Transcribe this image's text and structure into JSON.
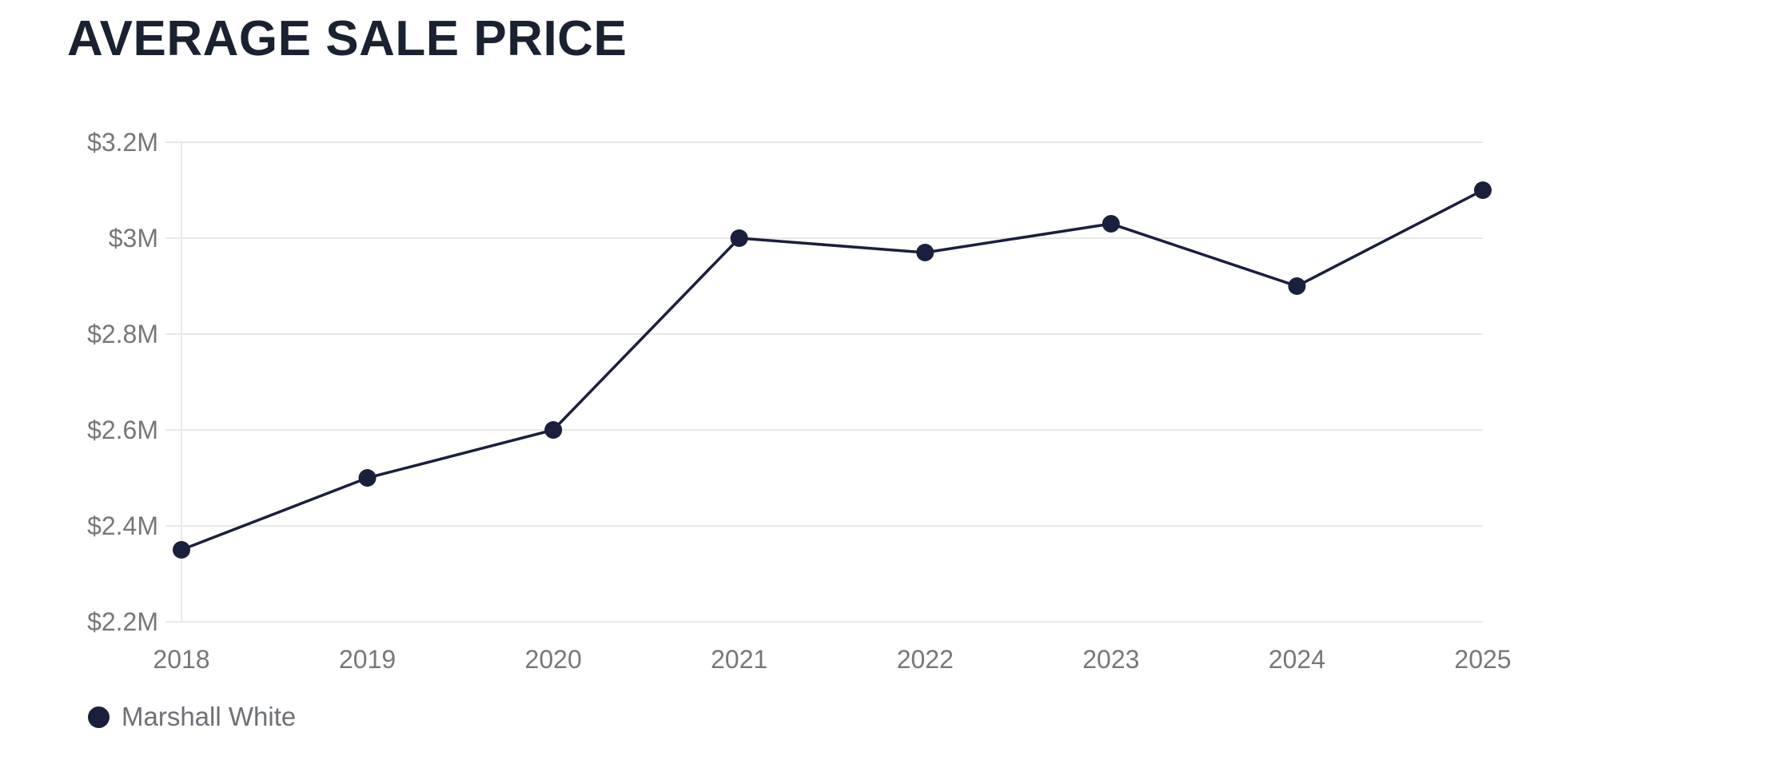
{
  "header": {
    "title": "AVERAGE SALE PRICE"
  },
  "chart_data": {
    "type": "line",
    "title": "AVERAGE SALE PRICE",
    "categories": [
      "2018",
      "2019",
      "2020",
      "2021",
      "2022",
      "2023",
      "2024",
      "2025"
    ],
    "series": [
      {
        "name": "Marshall White",
        "values": [
          2.35,
          2.5,
          2.6,
          3.0,
          2.97,
          3.03,
          2.9,
          3.1
        ],
        "color": "#1B1F3E",
        "marker": "circle"
      }
    ],
    "xlabel": "",
    "ylabel": "",
    "ylim": [
      2.2,
      3.2
    ],
    "ytick_interval": 0.2,
    "ytick_labels": [
      "$2.2M",
      "$2.4M",
      "$2.6M",
      "$2.8M",
      "$3M",
      "$3.2M"
    ],
    "unit": "USD millions",
    "grid": "horizontal",
    "legend_position": "bottom-left"
  },
  "legend": {
    "items": [
      {
        "label": "Marshall White",
        "color": "#1B1F3E"
      }
    ]
  },
  "colors": {
    "background": "#FFFFFF",
    "title": "#1A2232",
    "axis_label": "#75787B",
    "gridline": "#E8E8E9",
    "series": "#1B1F3E"
  }
}
